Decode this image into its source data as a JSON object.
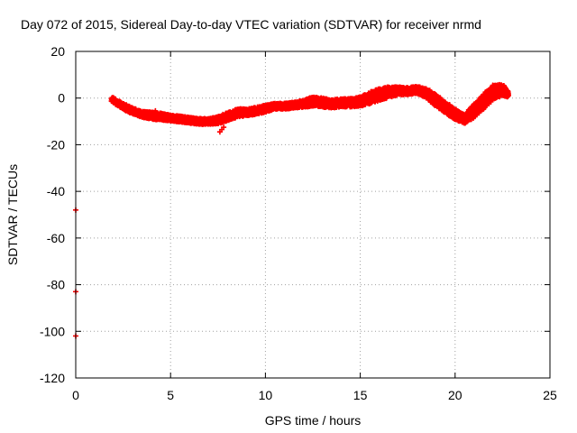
{
  "chart_data": {
    "type": "scatter",
    "title": "Day 072 of 2015, Sidereal Day-to-day VTEC variation (SDTVAR) for receiver nrmd",
    "xlabel": "GPS time / hours",
    "ylabel": "SDTVAR / TECUs",
    "xlim": [
      0,
      25
    ],
    "ylim": [
      -120,
      20
    ],
    "xticks": [
      0,
      5,
      10,
      15,
      20,
      25
    ],
    "yticks": [
      20,
      0,
      -20,
      -40,
      -60,
      -80,
      -100,
      -120
    ],
    "grid": true,
    "marker": "+",
    "color": "#ff0000",
    "series": [
      {
        "name": "SDTVAR",
        "band": [
          {
            "x": 1.9,
            "y": -0.5,
            "spread": 2.0
          },
          {
            "x": 2.5,
            "y": -3.5,
            "spread": 2.5
          },
          {
            "x": 3.0,
            "y": -5.5,
            "spread": 2.5
          },
          {
            "x": 3.5,
            "y": -7.0,
            "spread": 2.5
          },
          {
            "x": 4.0,
            "y": -7.5,
            "spread": 3.0
          },
          {
            "x": 4.5,
            "y": -8.0,
            "spread": 3.0
          },
          {
            "x": 5.0,
            "y": -8.5,
            "spread": 2.5
          },
          {
            "x": 5.5,
            "y": -9.0,
            "spread": 2.5
          },
          {
            "x": 6.0,
            "y": -9.5,
            "spread": 2.5
          },
          {
            "x": 6.5,
            "y": -10.0,
            "spread": 2.5
          },
          {
            "x": 7.0,
            "y": -10.0,
            "spread": 2.5
          },
          {
            "x": 7.5,
            "y": -9.5,
            "spread": 3.0
          },
          {
            "x": 8.0,
            "y": -8.0,
            "spread": 3.5
          },
          {
            "x": 8.5,
            "y": -6.5,
            "spread": 3.5
          },
          {
            "x": 9.0,
            "y": -6.0,
            "spread": 3.0
          },
          {
            "x": 9.5,
            "y": -5.5,
            "spread": 3.0
          },
          {
            "x": 10.0,
            "y": -4.5,
            "spread": 3.0
          },
          {
            "x": 10.5,
            "y": -3.5,
            "spread": 2.5
          },
          {
            "x": 11.0,
            "y": -3.5,
            "spread": 2.5
          },
          {
            "x": 11.5,
            "y": -3.0,
            "spread": 2.5
          },
          {
            "x": 12.0,
            "y": -2.5,
            "spread": 3.0
          },
          {
            "x": 12.5,
            "y": -1.5,
            "spread": 4.0
          },
          {
            "x": 13.0,
            "y": -2.0,
            "spread": 4.0
          },
          {
            "x": 13.5,
            "y": -2.5,
            "spread": 3.5
          },
          {
            "x": 14.0,
            "y": -2.0,
            "spread": 3.5
          },
          {
            "x": 14.5,
            "y": -2.0,
            "spread": 3.5
          },
          {
            "x": 15.0,
            "y": -1.5,
            "spread": 4.0
          },
          {
            "x": 15.5,
            "y": 0.0,
            "spread": 5.0
          },
          {
            "x": 16.0,
            "y": 1.5,
            "spread": 5.0
          },
          {
            "x": 16.5,
            "y": 2.5,
            "spread": 4.5
          },
          {
            "x": 17.0,
            "y": 3.0,
            "spread": 3.5
          },
          {
            "x": 17.5,
            "y": 3.0,
            "spread": 3.0
          },
          {
            "x": 18.0,
            "y": 3.5,
            "spread": 3.0
          },
          {
            "x": 18.5,
            "y": 2.0,
            "spread": 4.0
          },
          {
            "x": 19.0,
            "y": -1.0,
            "spread": 5.0
          },
          {
            "x": 19.5,
            "y": -4.0,
            "spread": 5.0
          },
          {
            "x": 20.0,
            "y": -7.0,
            "spread": 4.5
          },
          {
            "x": 20.5,
            "y": -9.0,
            "spread": 3.5
          },
          {
            "x": 21.0,
            "y": -5.5,
            "spread": 6.0
          },
          {
            "x": 21.5,
            "y": -1.5,
            "spread": 6.5
          },
          {
            "x": 22.0,
            "y": 2.5,
            "spread": 6.0
          },
          {
            "x": 22.5,
            "y": 3.5,
            "spread": 5.0
          },
          {
            "x": 22.8,
            "y": 1.5,
            "spread": 2.0
          }
        ],
        "points": [
          {
            "x": 7.6,
            "y": -14.5
          },
          {
            "x": 7.7,
            "y": -13.5
          },
          {
            "x": 7.8,
            "y": -12.5
          },
          {
            "x": 4.2,
            "y": -5.5
          },
          {
            "x": 5.3,
            "y": -8.0
          },
          {
            "x": 6.4,
            "y": -9.0
          },
          {
            "x": 0.0,
            "y": -48.0
          },
          {
            "x": 0.0,
            "y": -83.0
          },
          {
            "x": 0.0,
            "y": -102.0
          }
        ]
      }
    ]
  }
}
